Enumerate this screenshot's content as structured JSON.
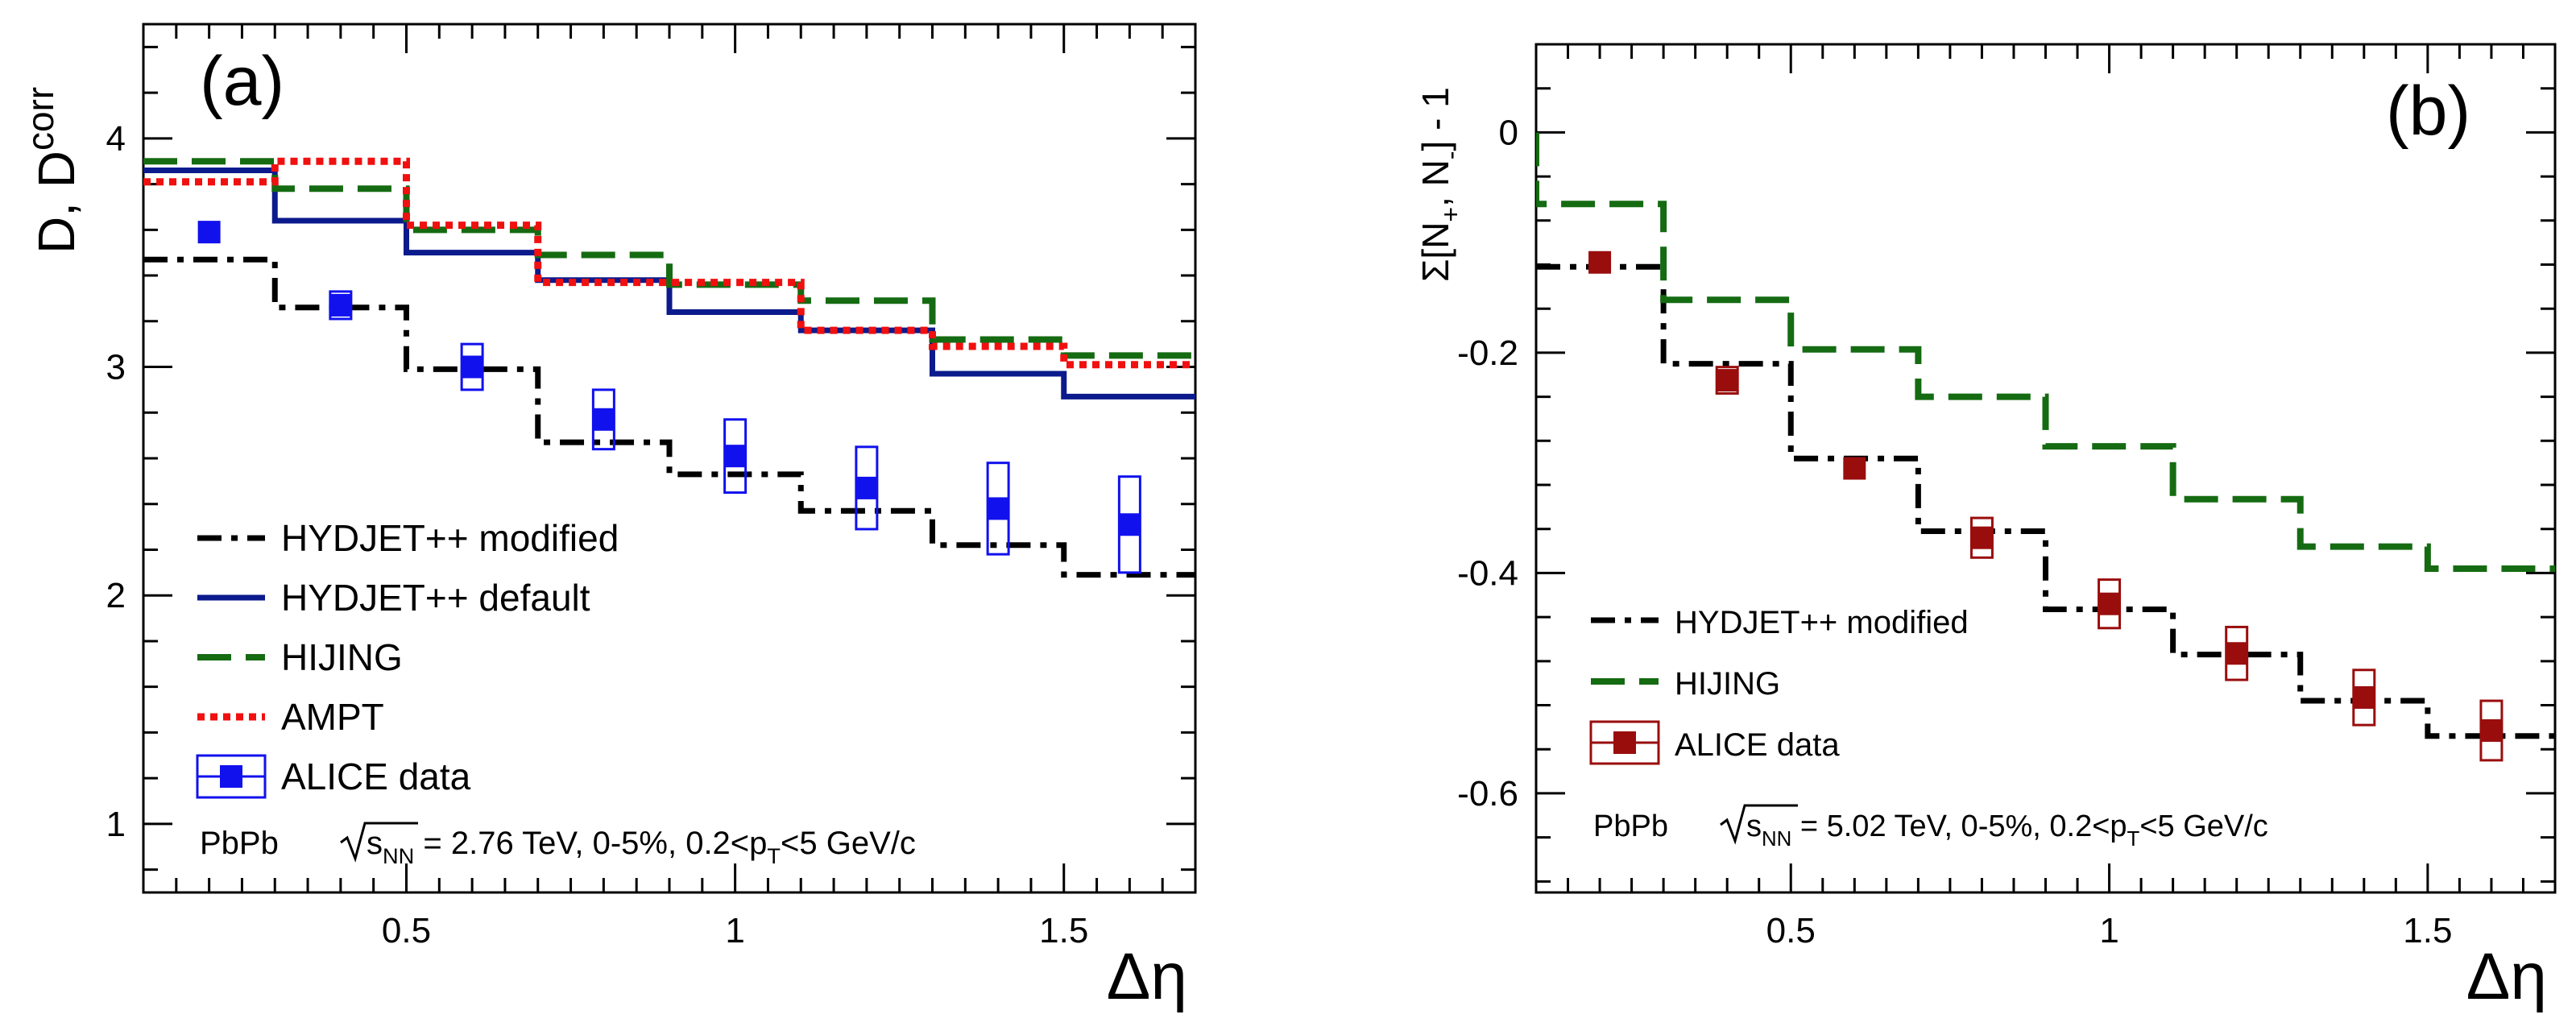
{
  "chart_data": [
    {
      "panel_label": "(a)",
      "type": "line",
      "ylabel": "D, D",
      "ylabel_sup": "corr",
      "xlabel": "Δη",
      "xlim": [
        0.1,
        1.7
      ],
      "ylim": [
        0.7,
        4.5
      ],
      "xticks": [
        0.5,
        1,
        1.5
      ],
      "xtick_labels": [
        "0.5",
        "1",
        "1.5"
      ],
      "yticks": [
        1,
        2,
        3,
        4
      ],
      "ytick_labels": [
        "1",
        "2",
        "3",
        "4"
      ],
      "annotation": {
        "system": "PbPb",
        "energy": "= 2.76 TeV, 0-5%, 0.2<p",
        "energy_sub": "T",
        "energy_tail": "<5 GeV/c",
        "sqrt_label": "s",
        "sqrt_sub": "NN"
      },
      "bin_edges": [
        0.1,
        0.3,
        0.5,
        0.7,
        0.9,
        1.1,
        1.3,
        1.5,
        1.7
      ],
      "series": [
        {
          "name": "HYDJET++ modified",
          "style": "dashdot",
          "color": "#000000",
          "values": [
            3.47,
            3.26,
            2.99,
            2.67,
            2.53,
            2.37,
            2.22,
            2.09
          ]
        },
        {
          "name": "HYDJET++ default",
          "style": "solid",
          "color": "#0b1a8c",
          "values": [
            3.86,
            3.64,
            3.5,
            3.38,
            3.24,
            3.16,
            2.97,
            2.87
          ]
        },
        {
          "name": "HIJING",
          "style": "dashed",
          "color": "#156b12",
          "values": [
            3.9,
            3.78,
            3.6,
            3.49,
            3.36,
            3.29,
            3.12,
            3.05
          ]
        },
        {
          "name": "AMPT",
          "style": "dotted",
          "color": "#f01010",
          "values": [
            3.81,
            3.9,
            3.62,
            3.37,
            3.37,
            3.16,
            3.09,
            3.01
          ]
        }
      ],
      "data_series": {
        "name": "ALICE data",
        "color": "#1111ee",
        "x": [
          0.2,
          0.4,
          0.6,
          0.8,
          1.0,
          1.2,
          1.4,
          1.6
        ],
        "y": [
          3.59,
          3.27,
          3.0,
          2.77,
          2.61,
          2.47,
          2.38,
          2.31
        ],
        "sys": [
          0.0,
          0.06,
          0.1,
          0.13,
          0.16,
          0.18,
          0.2,
          0.21
        ]
      },
      "legend": [
        "HYDJET++ modified",
        "HYDJET++ default",
        "HIJING",
        "AMPT",
        "ALICE data"
      ]
    },
    {
      "panel_label": "(b)",
      "type": "line",
      "ylabel": "Σ[N",
      "ylabel_sub1": "+",
      "ylabel_mid": ", N",
      "ylabel_sub2": "-",
      "ylabel_tail": "] - 1",
      "xlabel": "Δη",
      "xlim": [
        0.1,
        1.7
      ],
      "ylim": [
        -0.69,
        0.08
      ],
      "xticks": [
        0.5,
        1,
        1.5
      ],
      "xtick_labels": [
        "0.5",
        "1",
        "1.5"
      ],
      "yticks": [
        0,
        -0.2,
        -0.4,
        -0.6
      ],
      "ytick_labels": [
        "0",
        "-0.2",
        "-0.4",
        "-0.6"
      ],
      "annotation": {
        "system": "PbPb",
        "energy": "= 5.02 TeV, 0-5%, 0.2<p",
        "energy_sub": "T",
        "energy_tail": "<5 GeV/c",
        "sqrt_label": "s",
        "sqrt_sub": "NN"
      },
      "bin_edges": [
        0.1,
        0.3,
        0.5,
        0.7,
        0.9,
        1.1,
        1.3,
        1.5,
        1.7
      ],
      "series": [
        {
          "name": "HYDJET++ modified",
          "style": "dashdot",
          "color": "#000000",
          "values": [
            -0.122,
            -0.21,
            -0.296,
            -0.362,
            -0.433,
            -0.474,
            -0.516,
            -0.548
          ]
        },
        {
          "name": "HIJING",
          "style": "dashed",
          "color": "#156b12",
          "values": [
            -0.065,
            -0.152,
            -0.197,
            -0.24,
            -0.285,
            -0.333,
            -0.376,
            -0.396
          ]
        }
      ],
      "hijing_start": 0.0,
      "data_series": {
        "name": "ALICE data",
        "color": "#9a0d0d",
        "x": [
          0.2,
          0.4,
          0.6,
          0.8,
          1.0,
          1.2,
          1.4,
          1.6
        ],
        "y": [
          -0.118,
          -0.225,
          -0.305,
          -0.368,
          -0.428,
          -0.473,
          -0.513,
          -0.543
        ],
        "sys": [
          0.0,
          0.012,
          0.0,
          0.018,
          0.022,
          0.024,
          0.025,
          0.027
        ]
      },
      "legend": [
        "HYDJET++ modified",
        "HIJING",
        "ALICE data"
      ]
    }
  ]
}
